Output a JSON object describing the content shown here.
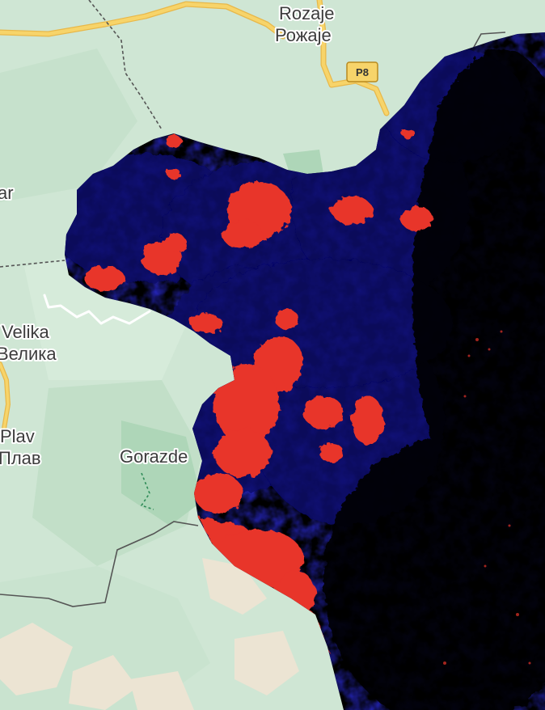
{
  "map": {
    "colors": {
      "base_green": "#cfe6d4",
      "forest_green": "#b9dcc2",
      "bare_land": "#e8e1d2",
      "road_yellow": "#f7d46a",
      "road_casing": "#e8b84a",
      "border_line": "#555555",
      "overlay_dark": "#000000",
      "overlay_blue": "#0a0a8c",
      "overlay_red": "#e8342a"
    },
    "labels": {
      "rozaje_latin": "Rozaje",
      "rozaje_cyrillic": "Рожаје",
      "velika_latin": "Velika",
      "velika_cyrillic": "Велика",
      "plav_latin": "Plav",
      "plav_cyrillic": "Плав",
      "gorazde": "Gorazde",
      "ar_fragment": "ar"
    },
    "road_shield": {
      "label": "P8",
      "icon": "road-shield-icon"
    }
  }
}
